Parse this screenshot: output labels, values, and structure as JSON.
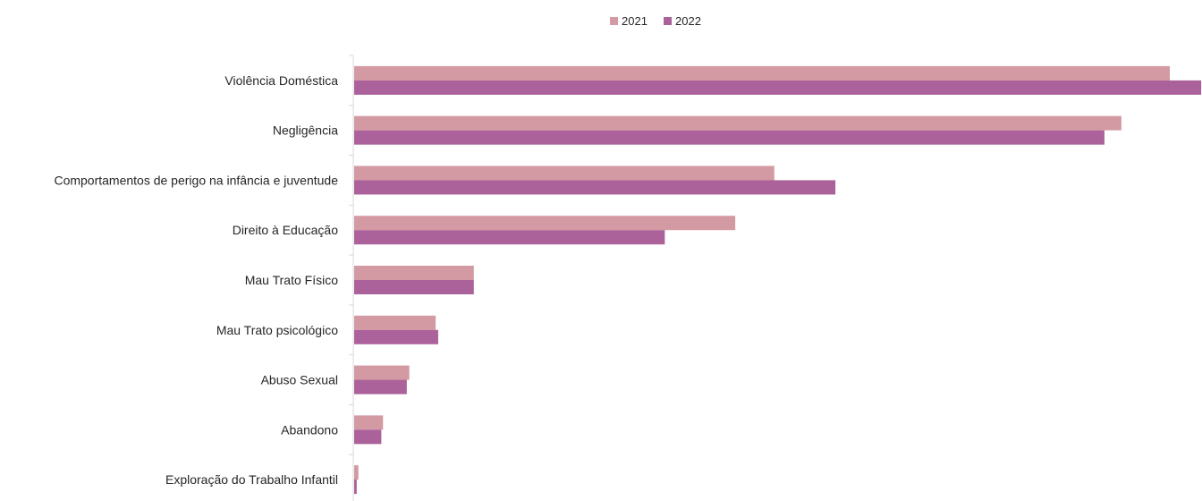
{
  "chart_data": {
    "type": "bar",
    "orientation": "horizontal",
    "title": "",
    "xlabel": "",
    "ylabel": "",
    "categories": [
      "Violência Doméstica",
      "Negligência",
      "Comportamentos de perigo na infância e juventude",
      "Direito à Educação",
      "Mau Trato Físico",
      "Mau Trato psicológico",
      "Abuso Sexual",
      "Abandono",
      "Exploração do Trabalho Infantil"
    ],
    "series": [
      {
        "name": "2021",
        "color": "#d39aa3",
        "values": [
          961,
          904,
          495,
          449,
          141,
          96,
          65,
          34,
          5
        ]
      },
      {
        "name": "2022",
        "color": "#ab6199",
        "values": [
          998,
          884,
          567,
          366,
          141,
          99,
          62,
          32,
          3
        ]
      }
    ],
    "xlim": [
      0,
      1000
    ],
    "grid": false,
    "legend": "top-center"
  }
}
